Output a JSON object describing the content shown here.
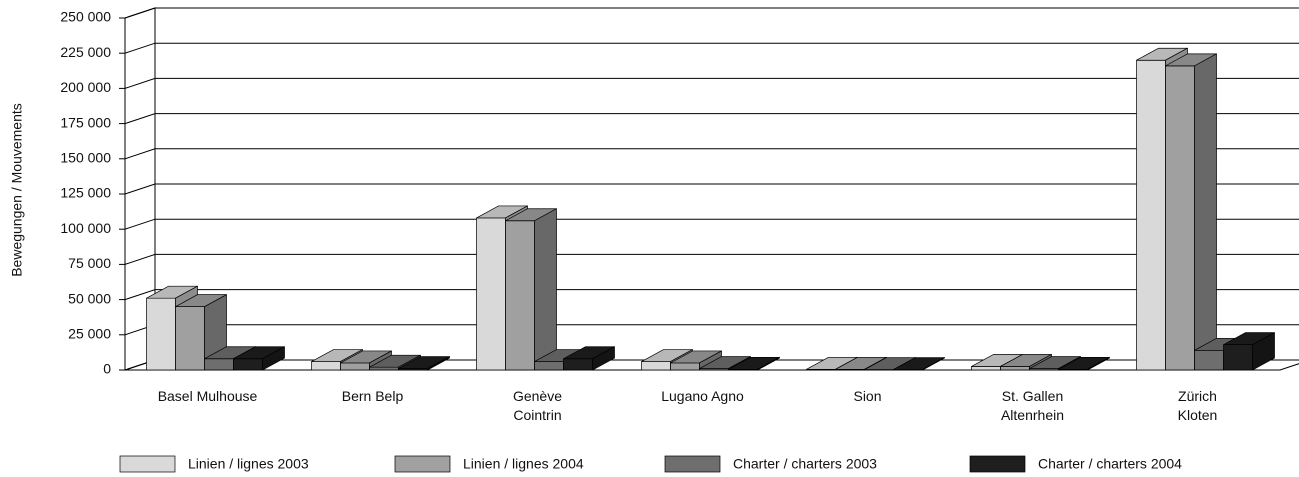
{
  "chart_data": {
    "type": "bar3d",
    "y_label": "Bewegungen / Mouvements",
    "categories": [
      "Basel Mulhouse",
      "Bern Belp",
      "Genève\nCointrin",
      "Lugano Agno",
      "Sion",
      "St. Gallen\nAltenrhein",
      "Zürich\nKloten"
    ],
    "series": [
      {
        "name": "Linien / lignes 2003",
        "color": "#d9d9d9",
        "values": [
          51000,
          6000,
          108000,
          6000,
          500,
          2500,
          220000
        ]
      },
      {
        "name": "Linien / lignes 2004",
        "color": "#a0a0a0",
        "values": [
          45000,
          5000,
          106000,
          5000,
          500,
          2500,
          216000
        ]
      },
      {
        "name": "Charter / charters 2003",
        "color": "#6e6e6e",
        "values": [
          8000,
          2000,
          6000,
          1000,
          300,
          1000,
          14000
        ]
      },
      {
        "name": "Charter / charters 2004",
        "color": "#1e1e1e",
        "values": [
          8000,
          1000,
          8000,
          500,
          300,
          500,
          18000
        ]
      }
    ],
    "ylim": [
      0,
      250000
    ],
    "yticks": [
      0,
      {
        "value": 25000,
        "label": "25 000"
      },
      {
        "value": 50000,
        "label": "50 000"
      },
      {
        "value": 75000,
        "label": "75 000"
      },
      {
        "value": 100000,
        "label": "100 000"
      },
      {
        "value": 125000,
        "label": "125 000"
      },
      {
        "value": 150000,
        "label": "150 000"
      },
      {
        "value": 175000,
        "label": "175 000"
      },
      {
        "value": 200000,
        "label": "200 000"
      },
      {
        "value": 225000,
        "label": "225 000"
      },
      {
        "value": 250000,
        "label": "250 000"
      }
    ],
    "grid": true
  }
}
